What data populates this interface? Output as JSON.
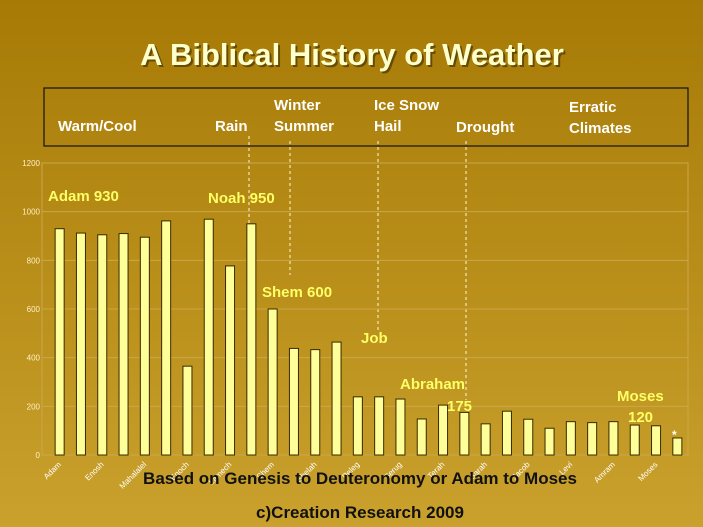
{
  "chart_data": {
    "type": "bar",
    "title": "A Biblical History of Weather",
    "header_labels": [
      {
        "lines": [
          "Warm/Cool"
        ]
      },
      {
        "lines": [
          "Rain"
        ]
      },
      {
        "lines": [
          "Winter",
          "Summer"
        ]
      },
      {
        "lines": [
          "Ice Snow",
          "Hail"
        ]
      },
      {
        "lines": [
          "Drought"
        ]
      },
      {
        "lines": [
          "Erratic",
          "Climates"
        ]
      }
    ],
    "categories": [
      "Adam",
      null,
      "Enosh",
      null,
      "Mahalalel",
      null,
      "Enoch",
      null,
      "Lamech",
      null,
      "Shem",
      null,
      "Shelah",
      null,
      "Peleg",
      null,
      "Serug",
      null,
      "Terah",
      null,
      "Sarah",
      null,
      "Jacob",
      null,
      "Levi",
      null,
      "Amram",
      null,
      "Moses",
      null
    ],
    "values": [
      930,
      912,
      905,
      910,
      895,
      962,
      365,
      969,
      777,
      950,
      600,
      438,
      433,
      464,
      239,
      239,
      230,
      148,
      205,
      175,
      128,
      180,
      147,
      110,
      137,
      133,
      137,
      123,
      120,
      70
    ],
    "color": "#ffff99",
    "ylim": [
      0,
      1200
    ],
    "yticks": [
      0,
      200,
      400,
      600,
      800,
      1000,
      1200
    ],
    "grid": true,
    "annotations": [
      "Adam 930",
      "Noah 950",
      "Shem 600",
      "Job",
      "Abraham",
      "175",
      "Moses",
      "120",
      "*"
    ],
    "footer": [
      "Based on Genesis to Deuteronomy or Adam to Moses",
      "c)Creation Research 2009"
    ]
  }
}
